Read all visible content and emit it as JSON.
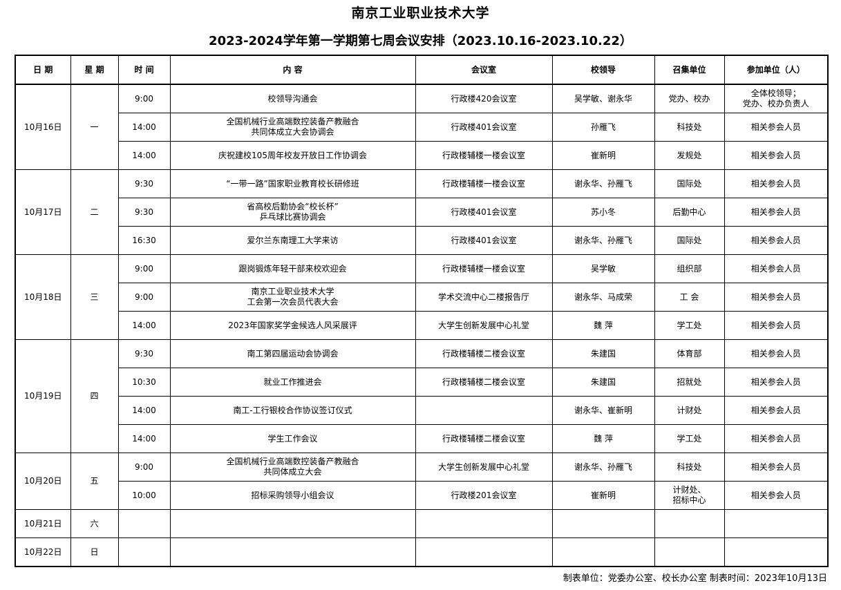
{
  "title": "南京工业职业技术大学",
  "subtitle": "2023-2024学年第一学期第七周会议安排（2023.10.16-2023.10.22）",
  "headers": [
    "日  期",
    "星  期",
    "时  间",
    "内    容",
    "会议室",
    "校领导",
    "召集单位",
    "参加单位（人）"
  ],
  "days": [
    {
      "date": "10月16日",
      "weekday": "一",
      "meetings": [
        {
          "time": "9:00",
          "content": "校领导沟通会",
          "room": "行政楼420会议室",
          "leader": "吴学敏、谢永华",
          "unit": "党办、校办",
          "participants": "全体校领导；\n党办、校办负责人"
        },
        {
          "time": "14:00",
          "content": "全国机械行业高端数控装备产教融合\n共同体成立大会协调会",
          "room": "行政楼401会议室",
          "leader": "孙雁飞",
          "unit": "科技处",
          "participants": "相关参会人员"
        },
        {
          "time": "14:00",
          "content": "庆祝建校105周年校友开放日工作协调会",
          "room": "行政楼辅楼一楼会议室",
          "leader": "崔新明",
          "unit": "发规处",
          "participants": "相关参会人员"
        }
      ]
    },
    {
      "date": "10月17日",
      "weekday": "二",
      "meetings": [
        {
          "time": "9:30",
          "content": "“一带一路”国家职业教育校长研修班",
          "room": "行政楼辅楼一楼会议室",
          "leader": "谢永华、孙雁飞",
          "unit": "国际处",
          "participants": "相关参会人员"
        },
        {
          "time": "9:30",
          "content": "省高校后勤协会“校长杯”\n乒乓球比赛协调会",
          "room": "行政楼401会议室",
          "leader": "苏小冬",
          "unit": "后勤中心",
          "participants": "相关参会人员"
        },
        {
          "time": "16:30",
          "content": "爱尔兰东南理工大学来访",
          "room": "行政楼401会议室",
          "leader": "谢永华、孙雁飞",
          "unit": "国际处",
          "participants": "相关参会人员"
        }
      ]
    },
    {
      "date": "10月18日",
      "weekday": "三",
      "meetings": [
        {
          "time": "9:00",
          "content": "跟岗锻炼年轻干部来校欢迎会",
          "room": "行政楼辅楼一楼会议室",
          "leader": "吴学敏",
          "unit": "组织部",
          "participants": "相关参会人员"
        },
        {
          "time": "9:00",
          "content": "南京工业职业技术大学\n工会第一次会员代表大会",
          "room": "学术交流中心二楼报告厅",
          "leader": "谢永华、马成荣",
          "unit": "工    会",
          "participants": "相关参会人员"
        },
        {
          "time": "14:00",
          "content": "2023年国家奖学金候选人风采展评",
          "room": "大学生创新发展中心礼堂",
          "leader": "魏    萍",
          "unit": "学工处",
          "participants": "相关参会人员"
        }
      ]
    },
    {
      "date": "10月19日",
      "weekday": "四",
      "meetings": [
        {
          "time": "9:30",
          "content": "南工第四届运动会协调会",
          "room": "行政楼辅楼二楼会议室",
          "leader": "朱建国",
          "unit": "体育部",
          "participants": "相关参会人员"
        },
        {
          "time": "10:30",
          "content": "就业工作推进会",
          "room": "行政楼辅楼二楼会议室",
          "leader": "朱建国",
          "unit": "招就处",
          "participants": "相关参会人员"
        },
        {
          "time": "14:00",
          "content": "南工-工行银校合作协议签订仪式",
          "room": "",
          "leader": "谢永华、崔新明",
          "unit": "计财处",
          "participants": "相关参会人员"
        },
        {
          "time": "14:00",
          "content": "学生工作会议",
          "room": "行政楼辅楼二楼会议室",
          "leader": "魏    萍",
          "unit": "学工处",
          "participants": "相关参会人员"
        }
      ]
    },
    {
      "date": "10月20日",
      "weekday": "五",
      "meetings": [
        {
          "time": "9:00",
          "content": "全国机械行业高端数控装备产教融合\n共同体成立大会",
          "room": "大学生创新发展中心礼堂",
          "leader": "谢永华、孙雁飞",
          "unit": "科技处",
          "participants": "相关参会人员"
        },
        {
          "time": "10:00",
          "content": "招标采购领导小组会议",
          "room": "行政楼201会议室",
          "leader": "崔新明",
          "unit": "计财处、\n招标中心",
          "participants": "相关参会人员"
        }
      ]
    },
    {
      "date": "10月21日",
      "weekday": "六",
      "meetings": [
        {
          "time": "",
          "content": "",
          "room": "",
          "leader": "",
          "unit": "",
          "participants": ""
        }
      ]
    },
    {
      "date": "10月22日",
      "weekday": "日",
      "meetings": [
        {
          "time": "",
          "content": "",
          "room": "",
          "leader": "",
          "unit": "",
          "participants": ""
        }
      ]
    }
  ],
  "footer": "制表单位：党委办公室、校长办公室    制表时间：2023年10月13日"
}
